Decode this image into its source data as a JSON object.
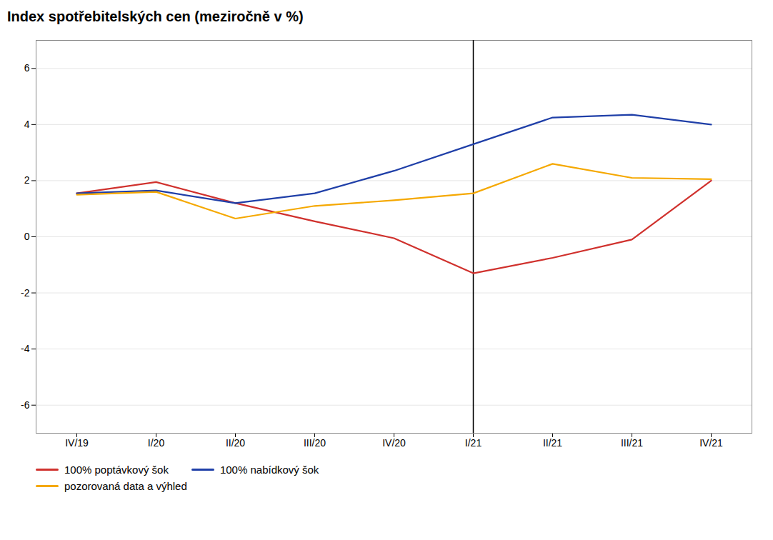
{
  "chart_data": {
    "type": "line",
    "title": "Index spotřebitelských cen (meziročně v %)",
    "categories": [
      "IV/19",
      "I/20",
      "II/20",
      "III/20",
      "IV/20",
      "I/21",
      "II/21",
      "III/21",
      "IV/21"
    ],
    "series": [
      {
        "name": "100% poptávkový šok",
        "color": "#d0312d",
        "values": [
          1.55,
          1.95,
          1.2,
          0.55,
          -0.05,
          -1.3,
          -0.75,
          -0.1,
          2.0
        ]
      },
      {
        "name": "100% nabídkový šok",
        "color": "#1f3fa8",
        "values": [
          1.55,
          1.65,
          1.2,
          1.55,
          2.35,
          3.3,
          4.25,
          4.35,
          4.0
        ]
      },
      {
        "name": "pozorovaná data a výhled",
        "color": "#f5a800",
        "values": [
          1.5,
          1.6,
          0.65,
          1.1,
          1.3,
          1.55,
          2.6,
          2.1,
          2.05
        ]
      }
    ],
    "vertical_line_x": "I/21",
    "ylim": [
      -7,
      7
    ],
    "yticks": [
      -6,
      -4,
      -2,
      0,
      2,
      4,
      6
    ],
    "grid": true,
    "legend": "bottom"
  }
}
